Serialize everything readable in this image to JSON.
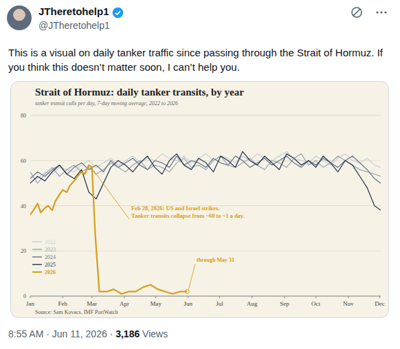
{
  "post": {
    "display_name": "JTheretohelp1",
    "handle": "@JTheretohelp1",
    "text": "This is a visual on daily tanker traffic since passing through the Strait of Hormuz. If you think this doesn’t matter soon, I can’t help you.",
    "timestamp": "8:55 AM · Jun 11, 2026 ·",
    "views": "3,186",
    "views_label": "Views"
  },
  "chart_data": {
    "type": "line",
    "title": "Strait of Hormuz: daily tanker transits, by year",
    "subtitle": "tanker transit calls per day, 7-day moving average, 2022 to 2026",
    "source": "Source: Sam Kovacs, IMF PortWatch",
    "xlim": [
      1,
      336
    ],
    "xticks": [
      {
        "value": 1,
        "label": "Jan"
      },
      {
        "value": 32,
        "label": "Feb"
      },
      {
        "value": 60,
        "label": "Mar"
      },
      {
        "value": 91,
        "label": "Apr"
      },
      {
        "value": 121,
        "label": "May"
      },
      {
        "value": 152,
        "label": "Jun"
      },
      {
        "value": 182,
        "label": "Jul"
      },
      {
        "value": 213,
        "label": "Aug"
      },
      {
        "value": 244,
        "label": "Sep"
      },
      {
        "value": 274,
        "label": "Oct"
      },
      {
        "value": 305,
        "label": "Nov"
      },
      {
        "value": 335,
        "label": "Dec"
      }
    ],
    "ylim": [
      0,
      80
    ],
    "yticks": [
      0,
      20,
      40,
      60,
      80
    ],
    "grid": true,
    "legend": "lower left",
    "series": [
      {
        "name": "2022",
        "color": "#c9d1d9",
        "x": [
          1,
          8,
          15,
          22,
          29,
          36,
          43,
          50,
          57,
          64,
          71,
          78,
          85,
          92,
          99,
          106,
          113,
          120,
          127,
          134,
          141,
          148,
          155,
          162,
          169,
          176,
          183,
          190,
          197,
          204,
          211,
          218,
          225,
          232,
          239,
          246,
          253,
          260,
          267,
          274,
          281,
          288,
          295,
          302,
          309,
          316,
          323,
          330,
          336
        ],
        "values": [
          53,
          52,
          55,
          54,
          57,
          56,
          55,
          58,
          60,
          57,
          59,
          61,
          58,
          60,
          62,
          59,
          61,
          60,
          63,
          61,
          60,
          62,
          59,
          61,
          63,
          60,
          62,
          61,
          59,
          62,
          60,
          63,
          61,
          60,
          62,
          64,
          61,
          60,
          59,
          62,
          60,
          58,
          61,
          63,
          60,
          59,
          61,
          58,
          57
        ]
      },
      {
        "name": "2023",
        "color": "#9eabb8",
        "x": [
          1,
          8,
          15,
          22,
          29,
          36,
          43,
          50,
          57,
          64,
          71,
          78,
          85,
          92,
          99,
          106,
          113,
          120,
          127,
          134,
          141,
          148,
          155,
          162,
          169,
          176,
          183,
          190,
          197,
          204,
          211,
          218,
          225,
          232,
          239,
          246,
          253,
          260,
          267,
          274,
          281,
          288,
          295,
          302,
          309,
          316,
          323,
          330,
          336
        ],
        "values": [
          55,
          50,
          54,
          57,
          53,
          56,
          58,
          55,
          57,
          54,
          56,
          59,
          57,
          55,
          58,
          60,
          56,
          58,
          57,
          55,
          59,
          61,
          57,
          58,
          56,
          60,
          62,
          58,
          57,
          59,
          61,
          58,
          56,
          60,
          59,
          57,
          61,
          63,
          58,
          60,
          57,
          59,
          62,
          60,
          58,
          56,
          55,
          54,
          53
        ]
      },
      {
        "name": "2024",
        "color": "#6c7b8d",
        "x": [
          1,
          8,
          15,
          22,
          29,
          36,
          43,
          50,
          57,
          64,
          71,
          78,
          85,
          92,
          99,
          106,
          113,
          120,
          127,
          134,
          141,
          148,
          155,
          162,
          169,
          176,
          183,
          190,
          197,
          204,
          211,
          218,
          225,
          232,
          239,
          246,
          253,
          260,
          267,
          274,
          281,
          288,
          295,
          302,
          309,
          316,
          323,
          330,
          336
        ],
        "values": [
          52,
          55,
          53,
          56,
          58,
          54,
          57,
          59,
          56,
          58,
          55,
          60,
          57,
          59,
          61,
          58,
          56,
          60,
          59,
          57,
          62,
          58,
          60,
          59,
          57,
          61,
          59,
          58,
          62,
          60,
          57,
          59,
          61,
          58,
          60,
          62,
          59,
          57,
          60,
          58,
          61,
          59,
          57,
          60,
          62,
          59,
          56,
          52,
          50
        ]
      },
      {
        "name": "2025",
        "color": "#2c3c55",
        "x": [
          1,
          8,
          15,
          22,
          29,
          36,
          43,
          50,
          57,
          64,
          71,
          78,
          85,
          92,
          99,
          106,
          113,
          120,
          127,
          134,
          141,
          148,
          155,
          162,
          169,
          176,
          183,
          190,
          197,
          204,
          211,
          218,
          225,
          232,
          239,
          246,
          253,
          260,
          267,
          274,
          281,
          288,
          295,
          302,
          309,
          316,
          323,
          330,
          336
        ],
        "values": [
          50,
          53,
          51,
          55,
          58,
          54,
          52,
          56,
          46,
          43,
          50,
          57,
          60,
          58,
          55,
          59,
          62,
          57,
          54,
          60,
          63,
          58,
          56,
          61,
          59,
          55,
          62,
          60,
          57,
          64,
          60,
          58,
          62,
          59,
          56,
          63,
          61,
          58,
          60,
          57,
          62,
          59,
          55,
          60,
          58,
          53,
          48,
          40,
          38
        ]
      },
      {
        "name": "2026",
        "color": "#d69e1c",
        "x": [
          1,
          4,
          8,
          11,
          15,
          18,
          22,
          25,
          29,
          32,
          36,
          39,
          43,
          46,
          50,
          53,
          57,
          60,
          63,
          67,
          74,
          81,
          88,
          95,
          102,
          109,
          116,
          123,
          130,
          137,
          144,
          151
        ],
        "values": [
          36,
          38,
          41,
          37,
          39,
          40,
          38,
          42,
          45,
          47,
          46,
          49,
          51,
          53,
          55,
          54,
          58,
          57,
          28,
          2,
          2,
          3,
          1,
          2,
          2,
          4,
          5,
          3,
          2,
          1,
          2,
          2
        ]
      }
    ],
    "annotations": [
      {
        "text": [
          "Feb 28, 2026: US and Israel strikes.",
          "Tanker transits collapse from ~60 to ~1 a day."
        ]
      },
      {
        "text": [
          "through May 31"
        ]
      }
    ]
  }
}
